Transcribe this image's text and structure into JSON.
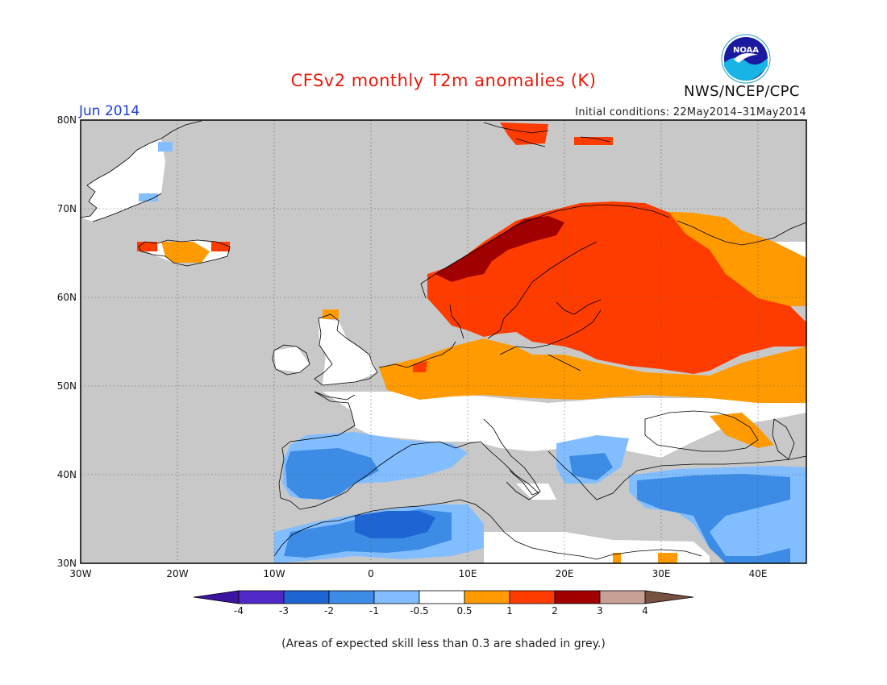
{
  "header": {
    "title": "CFSv2 monthly T2m anomalies (K)",
    "month": "Jun 2014",
    "initial_conditions": "Initial conditions: 22May2014–31May2014",
    "agency": "NWS/NCEP/CPC",
    "logo_text": "NOAA"
  },
  "map": {
    "lat_labels": [
      "80N",
      "70N",
      "60N",
      "50N",
      "40N",
      "30N"
    ],
    "lon_labels": [
      "30W",
      "20W",
      "10W",
      "0",
      "10E",
      "20E",
      "30E",
      "40E"
    ],
    "lat_values": [
      80,
      70,
      60,
      50,
      40,
      30
    ],
    "lon_values": [
      -30,
      -20,
      -10,
      0,
      10,
      20,
      30,
      40
    ],
    "lat_range": [
      30,
      80
    ],
    "lon_range": [
      -30,
      45
    ],
    "grid": "dotted",
    "mask_color": "#c8c8c8"
  },
  "legend": {
    "labels": [
      "-4",
      "-3",
      "-2",
      "-1",
      "-0.5",
      "0.5",
      "1",
      "2",
      "3",
      "4"
    ],
    "colors": [
      "#3c14a0",
      "#5028c8",
      "#1e64d2",
      "#3c8ce6",
      "#82beff",
      "#ffffff",
      "#ff9a00",
      "#ff3c00",
      "#a00000",
      "#c8a096",
      "#785040"
    ]
  },
  "footnote": "(Areas of expected skill less than 0.3 are shaded in grey.)"
}
